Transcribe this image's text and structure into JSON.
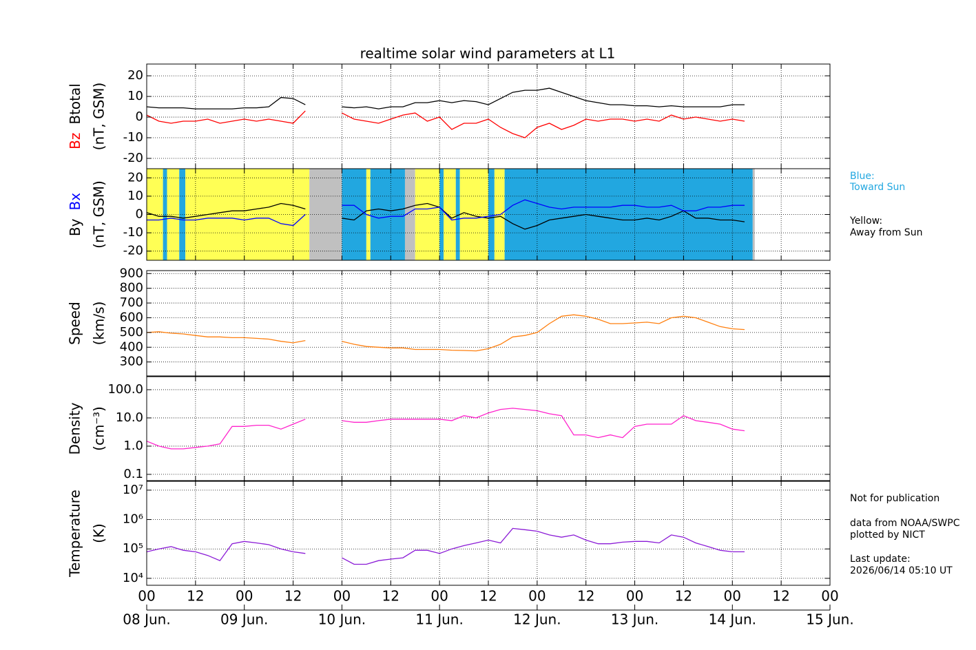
{
  "title": "realtime solar wind parameters at L1",
  "notes": [
    "Blue:",
    "Toward Sun",
    "Yellow:",
    "Away from Sun",
    "Not for publication",
    "data from NOAA/SWPC",
    "plotted by NICT",
    "Last update:",
    "2026/06/14 05:10 UT"
  ],
  "chart_data": [
    {
      "type": "line",
      "unit": "(nT, GSM)",
      "xlim": [
        0,
        168
      ],
      "ylim": [
        -25,
        25.7
      ],
      "yticks": [
        -20,
        -10,
        0,
        10,
        20
      ],
      "grid": true,
      "x": [
        0,
        3,
        6,
        9,
        12,
        15,
        18,
        21,
        24,
        27,
        30,
        33,
        36,
        39,
        42,
        45,
        48,
        51,
        54,
        57,
        60,
        63,
        66,
        69,
        72,
        75,
        78,
        81,
        84,
        87,
        90,
        93,
        96,
        99,
        102,
        105,
        108,
        111,
        114,
        117,
        120,
        123,
        126,
        129,
        132,
        135,
        138,
        141,
        144,
        147
      ],
      "series": [
        {
          "name": "Bz",
          "color": "#ff0000",
          "values": [
            1,
            -2,
            -3,
            -2,
            -2,
            -1,
            -3,
            -2,
            -1,
            -2,
            -1,
            -2,
            -3,
            3,
            null,
            null,
            2,
            -1,
            -2,
            -3,
            -1,
            1,
            2,
            -2,
            0,
            -6,
            -3,
            -3,
            -1,
            -5,
            -8,
            -10,
            -5,
            -3,
            -6,
            -4,
            -1,
            -2,
            -1,
            -1,
            -2,
            -1,
            -2,
            1,
            -1,
            0,
            -1,
            -2,
            -1,
            -2
          ]
        },
        {
          "name": "Btotal",
          "color": "#000000",
          "values": [
            5,
            4.5,
            4.5,
            4.5,
            4,
            4,
            4,
            4,
            4.5,
            4.5,
            5,
            9.5,
            9,
            6,
            null,
            null,
            5,
            4.5,
            5,
            4,
            5,
            5,
            7,
            7,
            8,
            7,
            8,
            7.5,
            6,
            9,
            12,
            13,
            13,
            14,
            12,
            10,
            8,
            7,
            6,
            6,
            5.5,
            5.5,
            5,
            5.5,
            5,
            5,
            5,
            5,
            6,
            6
          ]
        }
      ]
    },
    {
      "type": "line",
      "unit": "(nT, GSM)",
      "xlim": [
        0,
        168
      ],
      "ylim": [
        -25,
        25
      ],
      "yticks": [
        -20,
        -10,
        0,
        10,
        20
      ],
      "grid": true,
      "sectors": [
        {
          "start": 0,
          "end": 4,
          "color": "#ffff55"
        },
        {
          "start": 4,
          "end": 5,
          "color": "#22a7e0"
        },
        {
          "start": 5,
          "end": 8,
          "color": "#ffff55"
        },
        {
          "start": 8,
          "end": 9.5,
          "color": "#22a7e0"
        },
        {
          "start": 9.5,
          "end": 40,
          "color": "#ffff55"
        },
        {
          "start": 40,
          "end": 48,
          "color": "#c0c0c0"
        },
        {
          "start": 48,
          "end": 54,
          "color": "#22a7e0"
        },
        {
          "start": 54,
          "end": 55,
          "color": "#ffff55"
        },
        {
          "start": 55,
          "end": 63.5,
          "color": "#22a7e0"
        },
        {
          "start": 63.5,
          "end": 66,
          "color": "#c0c0c0"
        },
        {
          "start": 66,
          "end": 72,
          "color": "#ffff55"
        },
        {
          "start": 72,
          "end": 73,
          "color": "#22a7e0"
        },
        {
          "start": 73,
          "end": 76,
          "color": "#ffff55"
        },
        {
          "start": 76,
          "end": 77,
          "color": "#22a7e0"
        },
        {
          "start": 77,
          "end": 84,
          "color": "#ffff55"
        },
        {
          "start": 84,
          "end": 85.5,
          "color": "#22a7e0"
        },
        {
          "start": 85.5,
          "end": 88,
          "color": "#ffff55"
        },
        {
          "start": 88,
          "end": 149,
          "color": "#22a7e0"
        },
        {
          "start": 149,
          "end": 149.5,
          "color": "#c0c0c0"
        }
      ],
      "x": [
        0,
        3,
        6,
        9,
        12,
        15,
        18,
        21,
        24,
        27,
        30,
        33,
        36,
        39,
        42,
        45,
        48,
        51,
        54,
        57,
        60,
        63,
        66,
        69,
        72,
        75,
        78,
        81,
        84,
        87,
        90,
        93,
        96,
        99,
        102,
        105,
        108,
        111,
        114,
        117,
        120,
        123,
        126,
        129,
        132,
        135,
        138,
        141,
        144,
        147
      ],
      "series": [
        {
          "name": "By",
          "color": "#000000",
          "values": [
            1,
            -1,
            -1,
            -2,
            -1,
            0,
            1,
            2,
            2,
            3,
            4,
            6,
            5,
            3,
            null,
            null,
            -2,
            -3,
            2,
            3,
            2,
            3,
            5,
            6,
            4,
            -2,
            1,
            -1,
            -2,
            -1,
            -5,
            -8,
            -6,
            -3,
            -2,
            -1,
            0,
            -1,
            -2,
            -3,
            -3,
            -2,
            -3,
            -1,
            2,
            -2,
            -2,
            -3,
            -3,
            -4
          ]
        },
        {
          "name": "Bx",
          "color": "#0000ff",
          "values": [
            -3,
            -3,
            -2,
            -3,
            -3,
            -2,
            -2,
            -2,
            -3,
            -2,
            -2,
            -5,
            -6,
            0,
            null,
            null,
            5,
            5,
            0,
            -2,
            -1,
            -1,
            3,
            3,
            4,
            -3,
            -2,
            -2,
            -1,
            0,
            5,
            8,
            6,
            4,
            3,
            4,
            4,
            4,
            4,
            5,
            5,
            4,
            4,
            5,
            2,
            2,
            4,
            4,
            5,
            5
          ]
        }
      ]
    },
    {
      "type": "line",
      "ylabel": "Speed",
      "unit": "(km/s)",
      "xlim": [
        0,
        168
      ],
      "ylim": [
        205,
        920
      ],
      "yticks": [
        300,
        400,
        500,
        600,
        700,
        800,
        900
      ],
      "grid": true,
      "x": [
        0,
        3,
        6,
        9,
        12,
        15,
        18,
        21,
        24,
        27,
        30,
        33,
        36,
        39,
        42,
        45,
        48,
        51,
        54,
        57,
        60,
        63,
        66,
        69,
        72,
        75,
        78,
        81,
        84,
        87,
        90,
        93,
        96,
        99,
        102,
        105,
        108,
        111,
        114,
        117,
        120,
        123,
        126,
        129,
        132,
        135,
        138,
        141,
        144,
        147
      ],
      "series": [
        {
          "name": "Speed",
          "color": "#ff7f0e",
          "values": [
            500,
            505,
            495,
            490,
            480,
            470,
            470,
            465,
            465,
            460,
            455,
            440,
            430,
            445,
            null,
            null,
            440,
            420,
            405,
            400,
            395,
            395,
            385,
            385,
            385,
            380,
            378,
            375,
            390,
            420,
            470,
            480,
            500,
            560,
            610,
            620,
            610,
            590,
            560,
            560,
            565,
            570,
            560,
            600,
            610,
            600,
            570,
            540,
            525,
            520
          ]
        }
      ]
    },
    {
      "type": "line",
      "ylabel": "Density",
      "unit": "(cm⁻³)",
      "log": true,
      "xlim": [
        0,
        168
      ],
      "ylim": [
        0.06,
        290
      ],
      "yticks": [
        {
          "value": 0.1,
          "label": "0.1"
        },
        {
          "value": 1,
          "label": "1.0"
        },
        {
          "value": 10,
          "label": "10.0"
        },
        {
          "value": 100,
          "label": "100.0"
        }
      ],
      "grid": true,
      "x": [
        0,
        3,
        6,
        9,
        12,
        15,
        18,
        21,
        24,
        27,
        30,
        33,
        36,
        39,
        42,
        45,
        48,
        51,
        54,
        57,
        60,
        63,
        66,
        69,
        72,
        75,
        78,
        81,
        84,
        87,
        90,
        93,
        96,
        99,
        102,
        105,
        108,
        111,
        114,
        117,
        120,
        123,
        126,
        129,
        132,
        135,
        138,
        141,
        144,
        147
      ],
      "series": [
        {
          "name": "Density",
          "color": "#ff22cc",
          "values": [
            1.5,
            1.0,
            0.8,
            0.8,
            0.9,
            1.0,
            1.2,
            5,
            5,
            5.5,
            5.5,
            4,
            6,
            9,
            null,
            null,
            8,
            7,
            7,
            8,
            9,
            9,
            9,
            9,
            9,
            8,
            12,
            10,
            15,
            20,
            22,
            20,
            18,
            14,
            12,
            2.5,
            2.5,
            2.0,
            2.5,
            2.0,
            5,
            6,
            6,
            6,
            12,
            8,
            7,
            6,
            4,
            3.5
          ]
        }
      ]
    },
    {
      "type": "line",
      "ylabel": "Temperature",
      "unit": "(K)",
      "log": true,
      "xlim": [
        0,
        168
      ],
      "ylim": [
        5800,
        20000000
      ],
      "yticks": [
        {
          "value": 10000,
          "label": "10⁴"
        },
        {
          "value": 100000,
          "label": "10⁵"
        },
        {
          "value": 1000000,
          "label": "10⁶"
        },
        {
          "value": 10000000,
          "label": "10⁷"
        }
      ],
      "grid": true,
      "xticks": [
        {
          "value": 0,
          "label": "00"
        },
        {
          "value": 12,
          "label": "12"
        },
        {
          "value": 24,
          "label": "00"
        },
        {
          "value": 36,
          "label": "12"
        },
        {
          "value": 48,
          "label": "00"
        },
        {
          "value": 60,
          "label": "12"
        },
        {
          "value": 72,
          "label": "00"
        },
        {
          "value": 84,
          "label": "12"
        },
        {
          "value": 96,
          "label": "00"
        },
        {
          "value": 108,
          "label": "12"
        },
        {
          "value": 120,
          "label": "00"
        },
        {
          "value": 132,
          "label": "12"
        },
        {
          "value": 144,
          "label": "00"
        },
        {
          "value": 156,
          "label": "12"
        },
        {
          "value": 168,
          "label": "00"
        }
      ],
      "date_labels": [
        {
          "value": 0,
          "label": "08 Jun."
        },
        {
          "value": 24,
          "label": "09 Jun."
        },
        {
          "value": 48,
          "label": "10 Jun."
        },
        {
          "value": 72,
          "label": "11 Jun."
        },
        {
          "value": 96,
          "label": "12 Jun."
        },
        {
          "value": 120,
          "label": "13 Jun."
        },
        {
          "value": 144,
          "label": "14 Jun."
        },
        {
          "value": 168,
          "label": "15 Jun."
        }
      ],
      "x": [
        0,
        3,
        6,
        9,
        12,
        15,
        18,
        21,
        24,
        27,
        30,
        33,
        36,
        39,
        42,
        45,
        48,
        51,
        54,
        57,
        60,
        63,
        66,
        69,
        72,
        75,
        78,
        81,
        84,
        87,
        90,
        93,
        96,
        99,
        102,
        105,
        108,
        111,
        114,
        117,
        120,
        123,
        126,
        129,
        132,
        135,
        138,
        141,
        144,
        147
      ],
      "series": [
        {
          "name": "Temperature",
          "color": "#8a1ad6",
          "values": [
            80000,
            100000,
            120000,
            90000,
            80000,
            60000,
            40000,
            150000,
            180000,
            160000,
            140000,
            100000,
            80000,
            70000,
            null,
            null,
            50000,
            30000,
            30000,
            40000,
            45000,
            50000,
            90000,
            90000,
            70000,
            100000,
            130000,
            160000,
            200000,
            160000,
            500000,
            450000,
            400000,
            300000,
            250000,
            300000,
            200000,
            150000,
            150000,
            170000,
            180000,
            180000,
            160000,
            300000,
            250000,
            160000,
            120000,
            90000,
            80000,
            80000
          ]
        }
      ]
    }
  ]
}
